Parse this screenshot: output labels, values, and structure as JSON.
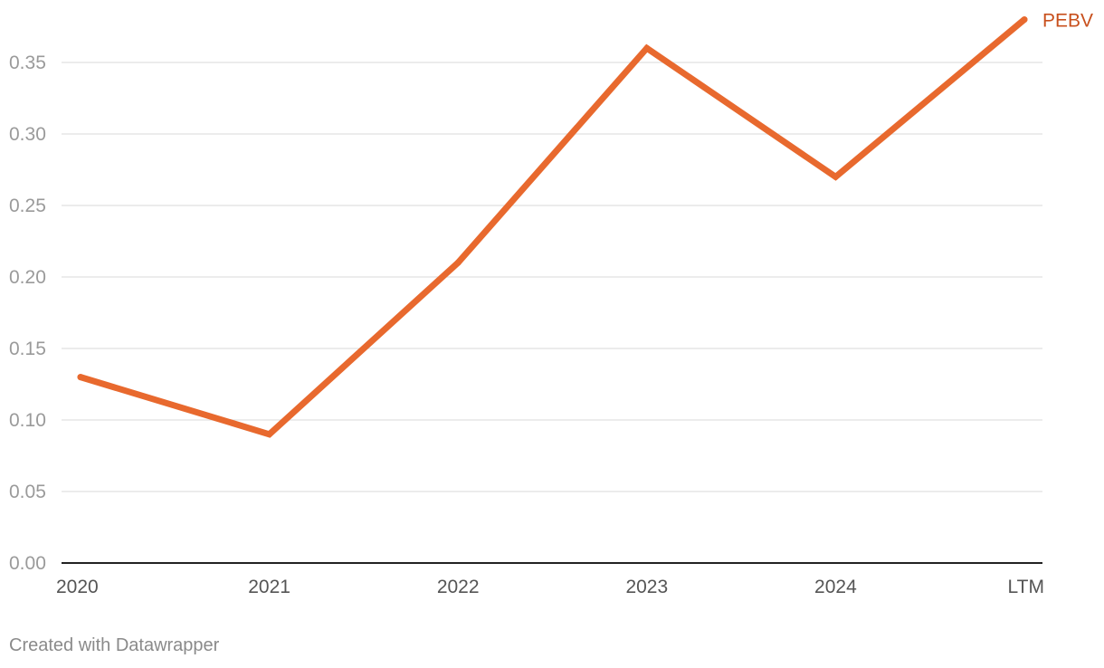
{
  "chart_data": {
    "type": "line",
    "categories": [
      "2020",
      "2021",
      "2022",
      "2023",
      "2024",
      "LTM"
    ],
    "series": [
      {
        "name": "PEBV",
        "values": [
          0.13,
          0.09,
          0.21,
          0.36,
          0.27,
          0.38
        ],
        "color": "#e8692e",
        "label_color": "#c8501d"
      }
    ],
    "yticks": [
      "0.00",
      "0.05",
      "0.10",
      "0.15",
      "0.20",
      "0.25",
      "0.30",
      "0.35"
    ],
    "ylim": [
      0,
      0.38
    ],
    "grid": true,
    "title": "",
    "xlabel": "",
    "ylabel": ""
  },
  "footer": {
    "credit": "Created with Datawrapper"
  }
}
